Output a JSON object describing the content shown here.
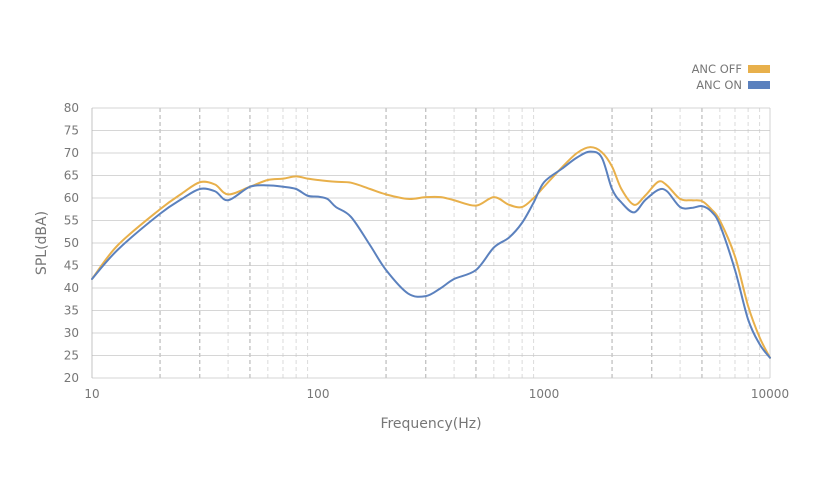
{
  "chart_data": {
    "type": "line",
    "title": "",
    "xlabel": "Frequency(Hz)",
    "ylabel": "SPL(dBA)",
    "x_scale": "log",
    "xlim": [
      10,
      10000
    ],
    "ylim": [
      20,
      80
    ],
    "x_ticks": [
      10,
      100,
      1000,
      10000
    ],
    "x_tick_labels": [
      "10",
      "100",
      "1000",
      "10000"
    ],
    "y_ticks": [
      20,
      25,
      30,
      35,
      40,
      45,
      50,
      55,
      60,
      65,
      70,
      75,
      80
    ],
    "y_tick_labels": [
      "20",
      "25",
      "30",
      "35",
      "40",
      "45",
      "50",
      "55",
      "60",
      "65",
      "70",
      "75",
      "80"
    ],
    "grid": "horizontal solid; vertical dashed at log subdivisions",
    "legend_position": "top-right",
    "series": [
      {
        "name": "ANC OFF",
        "color": "#E8B04B",
        "x": [
          10,
          13,
          20,
          25,
          30,
          35,
          40,
          50,
          60,
          70,
          80,
          90,
          100,
          120,
          140,
          170,
          200,
          250,
          300,
          350,
          400,
          500,
          600,
          700,
          800,
          900,
          1000,
          1200,
          1400,
          1600,
          1800,
          2000,
          2200,
          2500,
          2800,
          3200,
          3500,
          4000,
          4500,
          5000,
          5500,
          6000,
          7000,
          8000,
          9000,
          10000
        ],
        "y": [
          42,
          49.5,
          57.5,
          61,
          63.5,
          63,
          60.8,
          62.5,
          64,
          64.3,
          64.8,
          64.3,
          64,
          63.6,
          63.4,
          62,
          60.8,
          59.8,
          60.2,
          60.2,
          59.5,
          58.3,
          60.2,
          58.5,
          58,
          60,
          62.5,
          66.8,
          70,
          71.3,
          70.2,
          67,
          62,
          58.5,
          60.5,
          63.6,
          62.8,
          59.8,
          59.5,
          59.3,
          57.5,
          55,
          47,
          36,
          29,
          24.5
        ]
      },
      {
        "name": "ANC ON",
        "color": "#5B81BE",
        "x": [
          10,
          13,
          20,
          25,
          30,
          35,
          40,
          50,
          60,
          70,
          80,
          90,
          100,
          110,
          120,
          140,
          170,
          200,
          250,
          300,
          350,
          400,
          500,
          600,
          700,
          800,
          900,
          1000,
          1200,
          1400,
          1600,
          1800,
          2000,
          2200,
          2500,
          2800,
          3200,
          3500,
          4000,
          4500,
          5000,
          5500,
          6000,
          7000,
          8000,
          9000,
          10000
        ],
        "y": [
          42,
          48.5,
          56.5,
          59.8,
          62,
          61.5,
          59.5,
          62.5,
          62.8,
          62.5,
          62,
          60.5,
          60.3,
          59.8,
          58,
          55.8,
          49.5,
          44,
          38.8,
          38.2,
          40,
          42,
          44,
          49,
          51.2,
          54.5,
          59,
          63.5,
          66.5,
          69,
          70.3,
          69,
          62,
          59,
          56.8,
          59.5,
          61.8,
          61.5,
          58,
          57.8,
          58.2,
          57,
          54,
          44,
          33,
          27.5,
          24.5
        ]
      }
    ]
  }
}
